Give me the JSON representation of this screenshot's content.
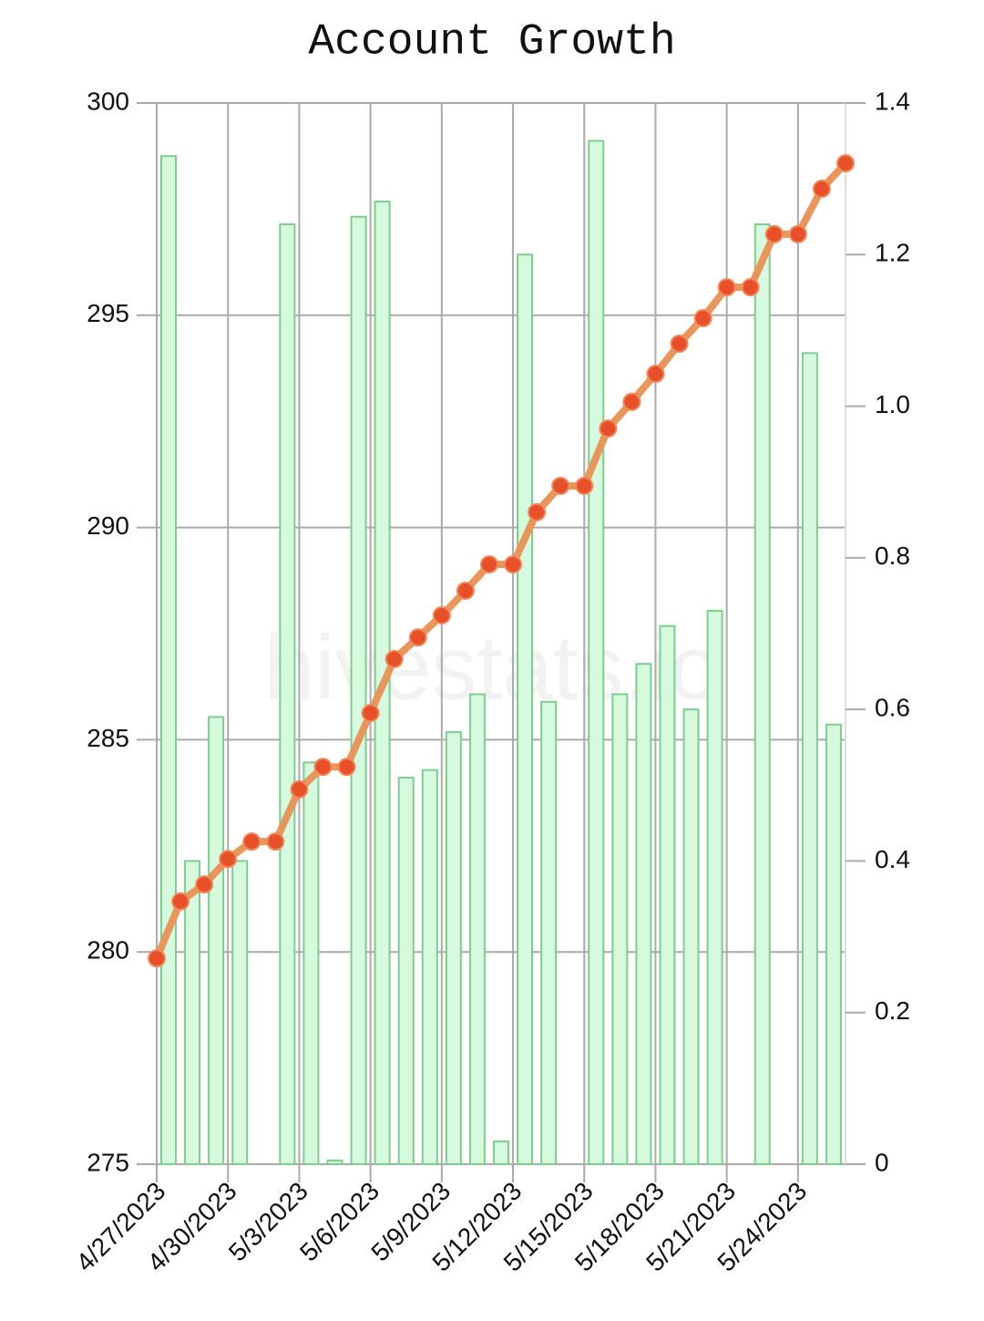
{
  "chart_data": {
    "type": "combo",
    "title": "Account Growth",
    "watermark": "hivestats.io",
    "categories": [
      "4/27/2023",
      null,
      null,
      "4/30/2023",
      null,
      null,
      "5/3/2023",
      null,
      null,
      "5/6/2023",
      null,
      null,
      "5/9/2023",
      null,
      null,
      "5/12/2023",
      null,
      null,
      "5/15/2023",
      null,
      null,
      "5/18/2023",
      null,
      null,
      "5/21/2023",
      null,
      null,
      "5/24/2023",
      null,
      null
    ],
    "series": [
      {
        "type": "bar",
        "axis": "y2",
        "color": "#d6fadd",
        "edge": "#7fcc8f",
        "values": [
          1.33,
          0.4,
          0.59,
          0.4,
          0,
          1.24,
          0.53,
          0.005,
          1.25,
          1.27,
          0.51,
          0.52,
          0.57,
          0.62,
          0.03,
          1.2,
          0.61,
          0,
          1.35,
          0.62,
          0.66,
          0.71,
          0.6,
          0.73,
          0,
          1.24,
          0,
          1.07,
          0.58,
          0
        ]
      },
      {
        "type": "line",
        "axis": "y",
        "color": "#e8965a",
        "marker": "#e8502a",
        "values": [
          279.85,
          281.19,
          281.59,
          282.19,
          282.6,
          282.6,
          283.83,
          284.36,
          284.36,
          285.63,
          286.9,
          287.41,
          287.93,
          288.51,
          289.13,
          289.13,
          290.36,
          290.98,
          290.98,
          292.33,
          292.96,
          293.62,
          294.33,
          294.93,
          295.66,
          295.66,
          296.91,
          296.91,
          297.98,
          298.58
        ]
      }
    ],
    "ylim": [
      275,
      300
    ],
    "yticks": [
      275,
      280,
      285,
      290,
      295,
      300
    ],
    "y2lim": [
      0,
      1.4
    ],
    "y2ticks": [
      0,
      0.2,
      0.4,
      0.6,
      0.8,
      {
        "value": 1,
        "label": "1.0"
      },
      1.2,
      1.4
    ],
    "grid": true
  }
}
